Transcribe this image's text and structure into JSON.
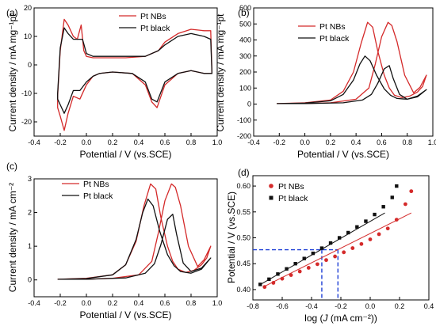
{
  "colors": {
    "pt_nbs": "#d42a2a",
    "pt_black": "#111111",
    "guide": "#1e3fd6"
  },
  "chart_data": [
    {
      "type": "line",
      "panel_label": "(a)",
      "xlabel": "Potential / V (vs.SCE)",
      "ylabel": "Current density / mA mg⁻¹pt",
      "xlim": [
        -0.4,
        1.0
      ],
      "ylim": [
        -25,
        20
      ],
      "xticks": [
        -0.4,
        -0.2,
        0.0,
        0.2,
        0.4,
        0.6,
        0.8,
        1.0
      ],
      "xtick_labels": [
        "-0.4",
        "-0.2",
        "0.0",
        "0.2",
        "0.4",
        "0.6",
        "0.8",
        "1.0"
      ],
      "yticks": [
        -20,
        -10,
        0,
        10,
        20
      ],
      "ytick_labels": [
        "-20",
        "-10",
        "0",
        "10",
        "20"
      ],
      "legend": "top-center",
      "series": [
        {
          "name": "Pt NBs",
          "color_key": "pt_nbs",
          "x": [
            -0.22,
            -0.2,
            -0.17,
            -0.14,
            -0.1,
            -0.07,
            -0.04,
            -0.02,
            0.0,
            0.05,
            0.15,
            0.3,
            0.45,
            0.55,
            0.6,
            0.7,
            0.8,
            0.9,
            0.95,
            0.96,
            0.95,
            0.9,
            0.8,
            0.7,
            0.6,
            0.54,
            0.5,
            0.45,
            0.35,
            0.2,
            0.1,
            0.05,
            0.0,
            -0.05,
            -0.1,
            -0.14,
            -0.17,
            -0.2,
            -0.22,
            -0.22
          ],
          "y": [
            -11,
            5,
            16,
            14,
            10,
            9,
            14,
            5,
            3,
            2.5,
            2.5,
            2.5,
            3,
            5,
            8,
            11,
            12.5,
            12,
            12,
            -3,
            -3,
            -3,
            -2,
            -3,
            -7,
            -15,
            -13,
            -7,
            -3,
            -2.5,
            -3,
            -4,
            -7,
            -12,
            -11,
            -17,
            -23,
            -18,
            -15,
            -11
          ]
        },
        {
          "name": "Pt black",
          "color_key": "pt_black",
          "x": [
            -0.22,
            -0.2,
            -0.17,
            -0.14,
            -0.1,
            -0.06,
            -0.03,
            0.0,
            0.05,
            0.15,
            0.3,
            0.45,
            0.55,
            0.6,
            0.7,
            0.8,
            0.9,
            0.95,
            0.96,
            0.95,
            0.9,
            0.8,
            0.7,
            0.6,
            0.54,
            0.5,
            0.45,
            0.35,
            0.2,
            0.1,
            0.05,
            0.0,
            -0.05,
            -0.1,
            -0.14,
            -0.17,
            -0.2,
            -0.22,
            -0.22
          ],
          "y": [
            -10,
            6,
            13,
            11,
            9,
            9,
            9,
            4,
            3,
            3,
            3,
            3,
            5,
            7,
            10,
            11,
            10,
            9,
            -3,
            -3,
            -3,
            -2,
            -3,
            -6,
            -13,
            -12,
            -6,
            -3,
            -2.5,
            -3,
            -4,
            -6,
            -9,
            -9,
            -14,
            -17,
            -14,
            -12,
            -10
          ]
        }
      ]
    },
    {
      "type": "line",
      "panel_label": "(b)",
      "xlabel": "Potential / V (vs.SCE)",
      "ylabel": "Current density / mA mg⁻¹pt",
      "xlim": [
        -0.4,
        1.0
      ],
      "ylim": [
        -200,
        600
      ],
      "xticks": [
        -0.4,
        -0.2,
        0.0,
        0.2,
        0.4,
        0.6,
        0.8,
        1.0
      ],
      "xtick_labels": [
        "-0.4",
        "-0.2",
        "0.0",
        "0.2",
        "0.4",
        "0.6",
        "0.8",
        "1.0"
      ],
      "yticks": [
        -200,
        -100,
        0,
        100,
        200,
        300,
        400,
        500,
        600
      ],
      "ytick_labels": [
        "-200",
        "-100",
        "0",
        "100",
        "200",
        "300",
        "400",
        "500",
        "600"
      ],
      "legend": "top-left",
      "series": [
        {
          "name": "Pt NBs",
          "color_key": "pt_nbs",
          "x": [
            -0.22,
            0.0,
            0.2,
            0.3,
            0.38,
            0.44,
            0.49,
            0.53,
            0.57,
            0.62,
            0.66,
            0.7,
            0.76,
            0.82,
            0.88,
            0.92,
            0.95,
            0.95,
            0.9,
            0.85,
            0.78,
            0.72,
            0.68,
            0.65,
            0.6,
            0.55,
            0.5,
            0.4,
            0.2,
            0.0,
            -0.22
          ],
          "y": [
            3,
            8,
            25,
            80,
            200,
            380,
            510,
            480,
            330,
            180,
            100,
            55,
            40,
            50,
            75,
            110,
            180,
            180,
            105,
            70,
            180,
            390,
            490,
            510,
            420,
            250,
            100,
            30,
            8,
            3,
            3
          ]
        },
        {
          "name": "Pt black",
          "color_key": "pt_black",
          "x": [
            -0.22,
            0.0,
            0.2,
            0.3,
            0.38,
            0.43,
            0.47,
            0.51,
            0.56,
            0.62,
            0.67,
            0.72,
            0.8,
            0.88,
            0.95,
            0.95,
            0.88,
            0.8,
            0.74,
            0.69,
            0.66,
            0.62,
            0.57,
            0.52,
            0.45,
            0.3,
            0.0,
            -0.22
          ],
          "y": [
            3,
            6,
            20,
            60,
            150,
            250,
            300,
            270,
            180,
            95,
            55,
            35,
            30,
            45,
            90,
            90,
            50,
            30,
            60,
            160,
            240,
            220,
            130,
            60,
            25,
            8,
            3,
            3
          ]
        }
      ]
    },
    {
      "type": "line",
      "panel_label": "(c)",
      "xlabel": "Potential / V (vs.SCE)",
      "ylabel": "Current density / mA cm⁻²",
      "xlim": [
        -0.4,
        1.0
      ],
      "ylim": [
        -0.5,
        3.0
      ],
      "xticks": [
        -0.4,
        -0.2,
        0.0,
        0.2,
        0.4,
        0.6,
        0.8,
        1.0
      ],
      "xtick_labels": [
        "-0.4",
        "-0.2",
        "0.0",
        "0.2",
        "0.4",
        "0.6",
        "0.8",
        "1.0"
      ],
      "yticks": [
        0,
        1,
        2,
        3
      ],
      "ytick_labels": [
        "0",
        "1",
        "2",
        "3"
      ],
      "legend": "top-left",
      "series": [
        {
          "name": "Pt NBs",
          "color_key": "pt_nbs",
          "x": [
            -0.22,
            0.0,
            0.2,
            0.3,
            0.38,
            0.44,
            0.49,
            0.53,
            0.57,
            0.62,
            0.66,
            0.7,
            0.76,
            0.82,
            0.88,
            0.92,
            0.95,
            0.95,
            0.9,
            0.85,
            0.78,
            0.72,
            0.68,
            0.65,
            0.6,
            0.55,
            0.5,
            0.4,
            0.2,
            0.0,
            -0.22
          ],
          "y": [
            0.02,
            0.05,
            0.15,
            0.45,
            1.15,
            2.2,
            2.85,
            2.7,
            1.85,
            1.0,
            0.55,
            0.32,
            0.22,
            0.28,
            0.45,
            0.65,
            1.0,
            1.0,
            0.6,
            0.4,
            1.0,
            2.2,
            2.75,
            2.85,
            2.35,
            1.4,
            0.55,
            0.15,
            0.05,
            0.02,
            0.02
          ]
        },
        {
          "name": "Pt black",
          "color_key": "pt_black",
          "x": [
            -0.22,
            0.0,
            0.2,
            0.3,
            0.38,
            0.43,
            0.47,
            0.51,
            0.56,
            0.62,
            0.67,
            0.72,
            0.8,
            0.88,
            0.95,
            0.95,
            0.88,
            0.8,
            0.74,
            0.69,
            0.66,
            0.62,
            0.57,
            0.52,
            0.45,
            0.3,
            0.0,
            -0.22
          ],
          "y": [
            0.02,
            0.04,
            0.15,
            0.45,
            1.2,
            2.0,
            2.4,
            2.2,
            1.45,
            0.75,
            0.42,
            0.25,
            0.2,
            0.32,
            0.65,
            0.65,
            0.35,
            0.25,
            0.5,
            1.35,
            1.95,
            1.8,
            1.05,
            0.48,
            0.2,
            0.06,
            0.02,
            0.02
          ]
        }
      ]
    },
    {
      "type": "scatter",
      "panel_label": "(d)",
      "xlabel_prefix": "log (",
      "xlabel_var": "J",
      "xlabel_suffix": " (mA cm⁻²))",
      "ylabel": "Potential / V (vs.SCE)",
      "xlim": [
        -0.8,
        0.4
      ],
      "ylim": [
        0.38,
        0.62
      ],
      "xticks": [
        -0.8,
        -0.6,
        -0.4,
        -0.2,
        0.0,
        0.2,
        0.4
      ],
      "xtick_labels": [
        "-0.8",
        "-0.6",
        "-0.4",
        "-0.2",
        "0.0",
        "0.2",
        "0.4"
      ],
      "yticks": [
        0.4,
        0.45,
        0.5,
        0.55,
        0.6
      ],
      "ytick_labels": [
        "0.40",
        "0.45",
        "0.50",
        "0.55",
        "0.60"
      ],
      "legend": "top-left",
      "series": [
        {
          "name": "Pt NBs",
          "color_key": "pt_nbs",
          "marker": "circle",
          "x": [
            -0.72,
            -0.66,
            -0.6,
            -0.54,
            -0.48,
            -0.42,
            -0.36,
            -0.3,
            -0.24,
            -0.18,
            -0.12,
            -0.06,
            0.0,
            0.06,
            0.12,
            0.18,
            0.24,
            0.28
          ],
          "y": [
            0.405,
            0.413,
            0.421,
            0.428,
            0.435,
            0.442,
            0.449,
            0.457,
            0.464,
            0.472,
            0.48,
            0.488,
            0.497,
            0.507,
            0.518,
            0.535,
            0.565,
            0.59
          ],
          "fit": {
            "x": [
              -0.73,
              0.28
            ],
            "y": [
              0.405,
              0.548
            ]
          }
        },
        {
          "name": "Pt black",
          "color_key": "pt_black",
          "marker": "square",
          "x": [
            -0.75,
            -0.69,
            -0.63,
            -0.57,
            -0.51,
            -0.45,
            -0.39,
            -0.33,
            -0.27,
            -0.21,
            -0.15,
            -0.09,
            -0.03,
            0.03,
            0.09,
            0.15,
            0.18
          ],
          "y": [
            0.41,
            0.42,
            0.43,
            0.44,
            0.45,
            0.46,
            0.47,
            0.48,
            0.49,
            0.5,
            0.51,
            0.521,
            0.532,
            0.545,
            0.56,
            0.578,
            0.6
          ],
          "fit": {
            "x": [
              -0.76,
              0.1
            ],
            "y": [
              0.408,
              0.548
            ]
          }
        }
      ],
      "guides": {
        "y": 0.477,
        "x1": -0.33,
        "x2": -0.22
      }
    }
  ]
}
